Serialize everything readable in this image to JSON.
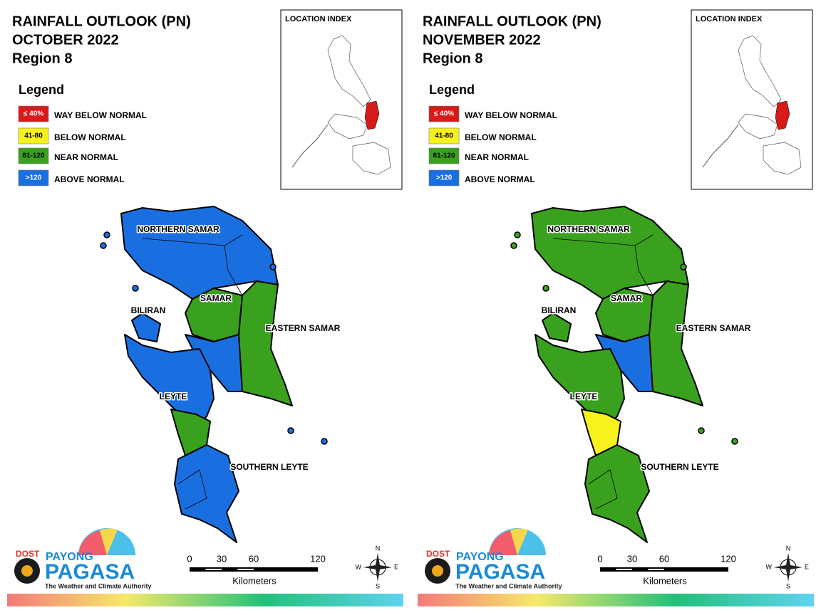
{
  "panels": [
    {
      "title": [
        "RAINFALL OUTLOOK (PN)",
        "OCTOBER 2022",
        "Region 8"
      ],
      "legend": {
        "title": "Legend",
        "items": [
          {
            "swatch": "≤ 40%",
            "label": "WAY BELOW NORMAL",
            "color": "#d71a1a"
          },
          {
            "swatch": "41-80",
            "label": "BELOW NORMAL",
            "color": "#f8f21c"
          },
          {
            "swatch": "81-120",
            "label": "NEAR NORMAL",
            "color": "#3aa11e"
          },
          {
            "swatch": ">120",
            "label": "ABOVE NORMAL",
            "color": "#1a6fe0"
          }
        ]
      },
      "location_index": "LOCATION INDEX",
      "provinces": [
        "NORTHERN SAMAR",
        "SAMAR",
        "EASTERN SAMAR",
        "BILIRAN",
        "LEYTE",
        "SOUTHERN LEYTE"
      ],
      "scale": {
        "ticks": [
          0,
          30,
          60,
          120
        ],
        "unit": "Kilometers"
      },
      "logo": {
        "agency": "DOST",
        "brand_top": "PAYONG",
        "brand": "PAGASA",
        "tagline": "The Weather and Climate Authority"
      },
      "compass": {
        "n": "N",
        "e": "E",
        "s": "S",
        "w": "W"
      }
    },
    {
      "title": [
        "RAINFALL OUTLOOK (PN)",
        "NOVEMBER 2022",
        "Region 8"
      ],
      "legend": {
        "title": "Legend",
        "items": [
          {
            "swatch": "≤ 40%",
            "label": "WAY BELOW NORMAL",
            "color": "#d71a1a"
          },
          {
            "swatch": "41-80",
            "label": "BELOW NORMAL",
            "color": "#f8f21c"
          },
          {
            "swatch": "81-120",
            "label": "NEAR NORMAL",
            "color": "#3aa11e"
          },
          {
            "swatch": ">120",
            "label": "ABOVE NORMAL",
            "color": "#1a6fe0"
          }
        ]
      },
      "location_index": "LOCATION INDEX",
      "provinces": [
        "NORTHERN SAMAR",
        "SAMAR",
        "EASTERN SAMAR",
        "BILIRAN",
        "LEYTE",
        "SOUTHERN LEYTE"
      ],
      "scale": {
        "ticks": [
          0,
          30,
          60,
          120
        ],
        "unit": "Kilometers"
      },
      "logo": {
        "agency": "DOST",
        "brand_top": "PAYONG",
        "brand": "PAGASA",
        "tagline": "The Weather and Climate Authority"
      },
      "compass": {
        "n": "N",
        "e": "E",
        "s": "S",
        "w": "W"
      }
    }
  ]
}
